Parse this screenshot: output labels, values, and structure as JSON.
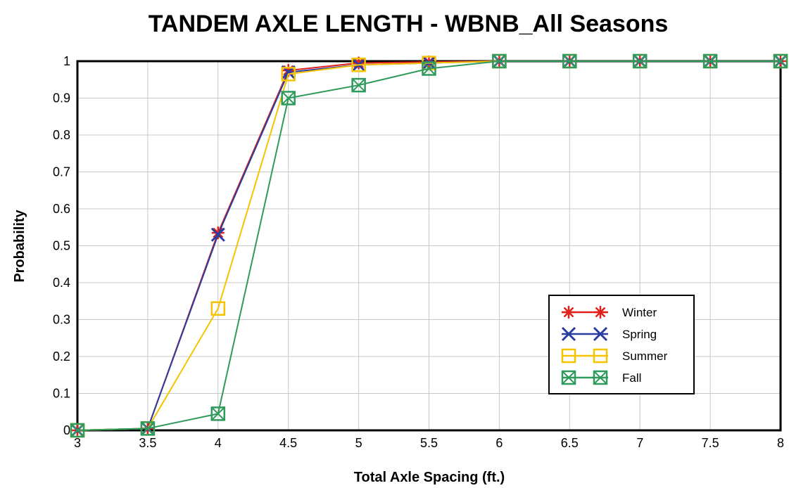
{
  "chart_data": {
    "type": "line",
    "title": "TANDEM AXLE LENGTH - WBNB_All Seasons",
    "xlabel": "Total Axle Spacing (ft.)",
    "ylabel": "Probability",
    "xlim": [
      3,
      8
    ],
    "ylim": [
      0,
      1
    ],
    "x_ticks": [
      "3",
      "3.5",
      "4",
      "4.5",
      "5",
      "5.5",
      "6",
      "6.5",
      "7",
      "7.5",
      "8"
    ],
    "y_ticks": [
      "0",
      "0.1",
      "0.2",
      "0.3",
      "0.4",
      "0.5",
      "0.6",
      "0.7",
      "0.8",
      "0.9",
      "1"
    ],
    "x": [
      3,
      3.5,
      4,
      4.5,
      5,
      5.5,
      6,
      6.5,
      7,
      7.5,
      8
    ],
    "grid": true,
    "legend_position": "bottom-right",
    "series": [
      {
        "name": "Winter",
        "color": "#e0201c",
        "marker": "asterisk",
        "values": [
          0,
          0.005,
          0.535,
          0.975,
          0.995,
          0.998,
          1,
          1,
          1,
          1,
          1
        ]
      },
      {
        "name": "Spring",
        "color": "#2b3ea0",
        "marker": "x",
        "values": [
          0,
          0.005,
          0.53,
          0.97,
          0.99,
          0.995,
          1,
          1,
          1,
          1,
          1
        ]
      },
      {
        "name": "Summer",
        "color": "#f5c400",
        "marker": "square",
        "values": [
          0,
          0.005,
          0.33,
          0.965,
          0.99,
          0.995,
          1,
          1,
          1,
          1,
          1
        ]
      },
      {
        "name": "Fall",
        "color": "#2e9a5c",
        "marker": "boxed-x",
        "values": [
          0,
          0.005,
          0.045,
          0.9,
          0.935,
          0.98,
          1,
          1,
          1,
          1,
          1
        ]
      }
    ]
  }
}
